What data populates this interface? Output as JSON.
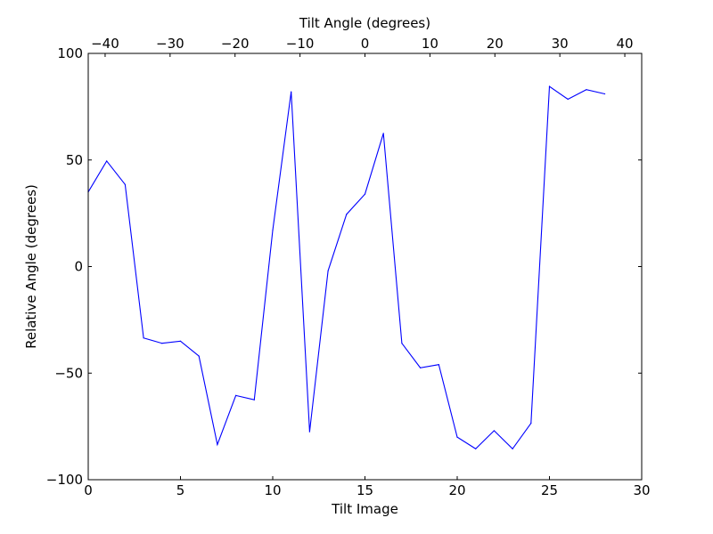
{
  "chart_data": {
    "type": "line",
    "title": "",
    "xlabel": "Tilt Image",
    "ylabel": "Relative Angle (degrees)",
    "x2label": "Tilt Angle (degrees)",
    "xlim": [
      0,
      30
    ],
    "ylim": [
      -100,
      100
    ],
    "x2lim": [
      -42.6,
      42.6
    ],
    "xticks": [
      0,
      5,
      10,
      15,
      20,
      25,
      30
    ],
    "xtick_labels": [
      "0",
      "5",
      "10",
      "15",
      "20",
      "25",
      "30"
    ],
    "yticks": [
      -100,
      -50,
      0,
      50,
      100
    ],
    "ytick_labels": [
      "−100",
      "−50",
      "0",
      "50",
      "100"
    ],
    "x2ticks": [
      -40,
      -30,
      -20,
      -10,
      0,
      10,
      20,
      30,
      40
    ],
    "x2tick_labels": [
      "−40",
      "−30",
      "−20",
      "−10",
      "0",
      "10",
      "20",
      "30",
      "40"
    ],
    "grid": false,
    "legend": "none",
    "line_color": "#0000ff",
    "series": [
      {
        "x": [
          0,
          1,
          2,
          3,
          4,
          5,
          6,
          7,
          8,
          9,
          10,
          11,
          12,
          13,
          14,
          15,
          16,
          17,
          18,
          19,
          20,
          21,
          22,
          23,
          24,
          25,
          26,
          27,
          28
        ],
        "values": [
          35,
          49.5,
          38.5,
          -33.5,
          -36,
          -35,
          -42,
          -83.5,
          -60.5,
          -62.5,
          17,
          82,
          -77.5,
          -2,
          24.5,
          34,
          62.5,
          -36,
          -47.5,
          -46,
          -80,
          -85.5,
          -77,
          -85.5,
          -73.5,
          84.5,
          78.5,
          83,
          81
        ]
      }
    ]
  }
}
